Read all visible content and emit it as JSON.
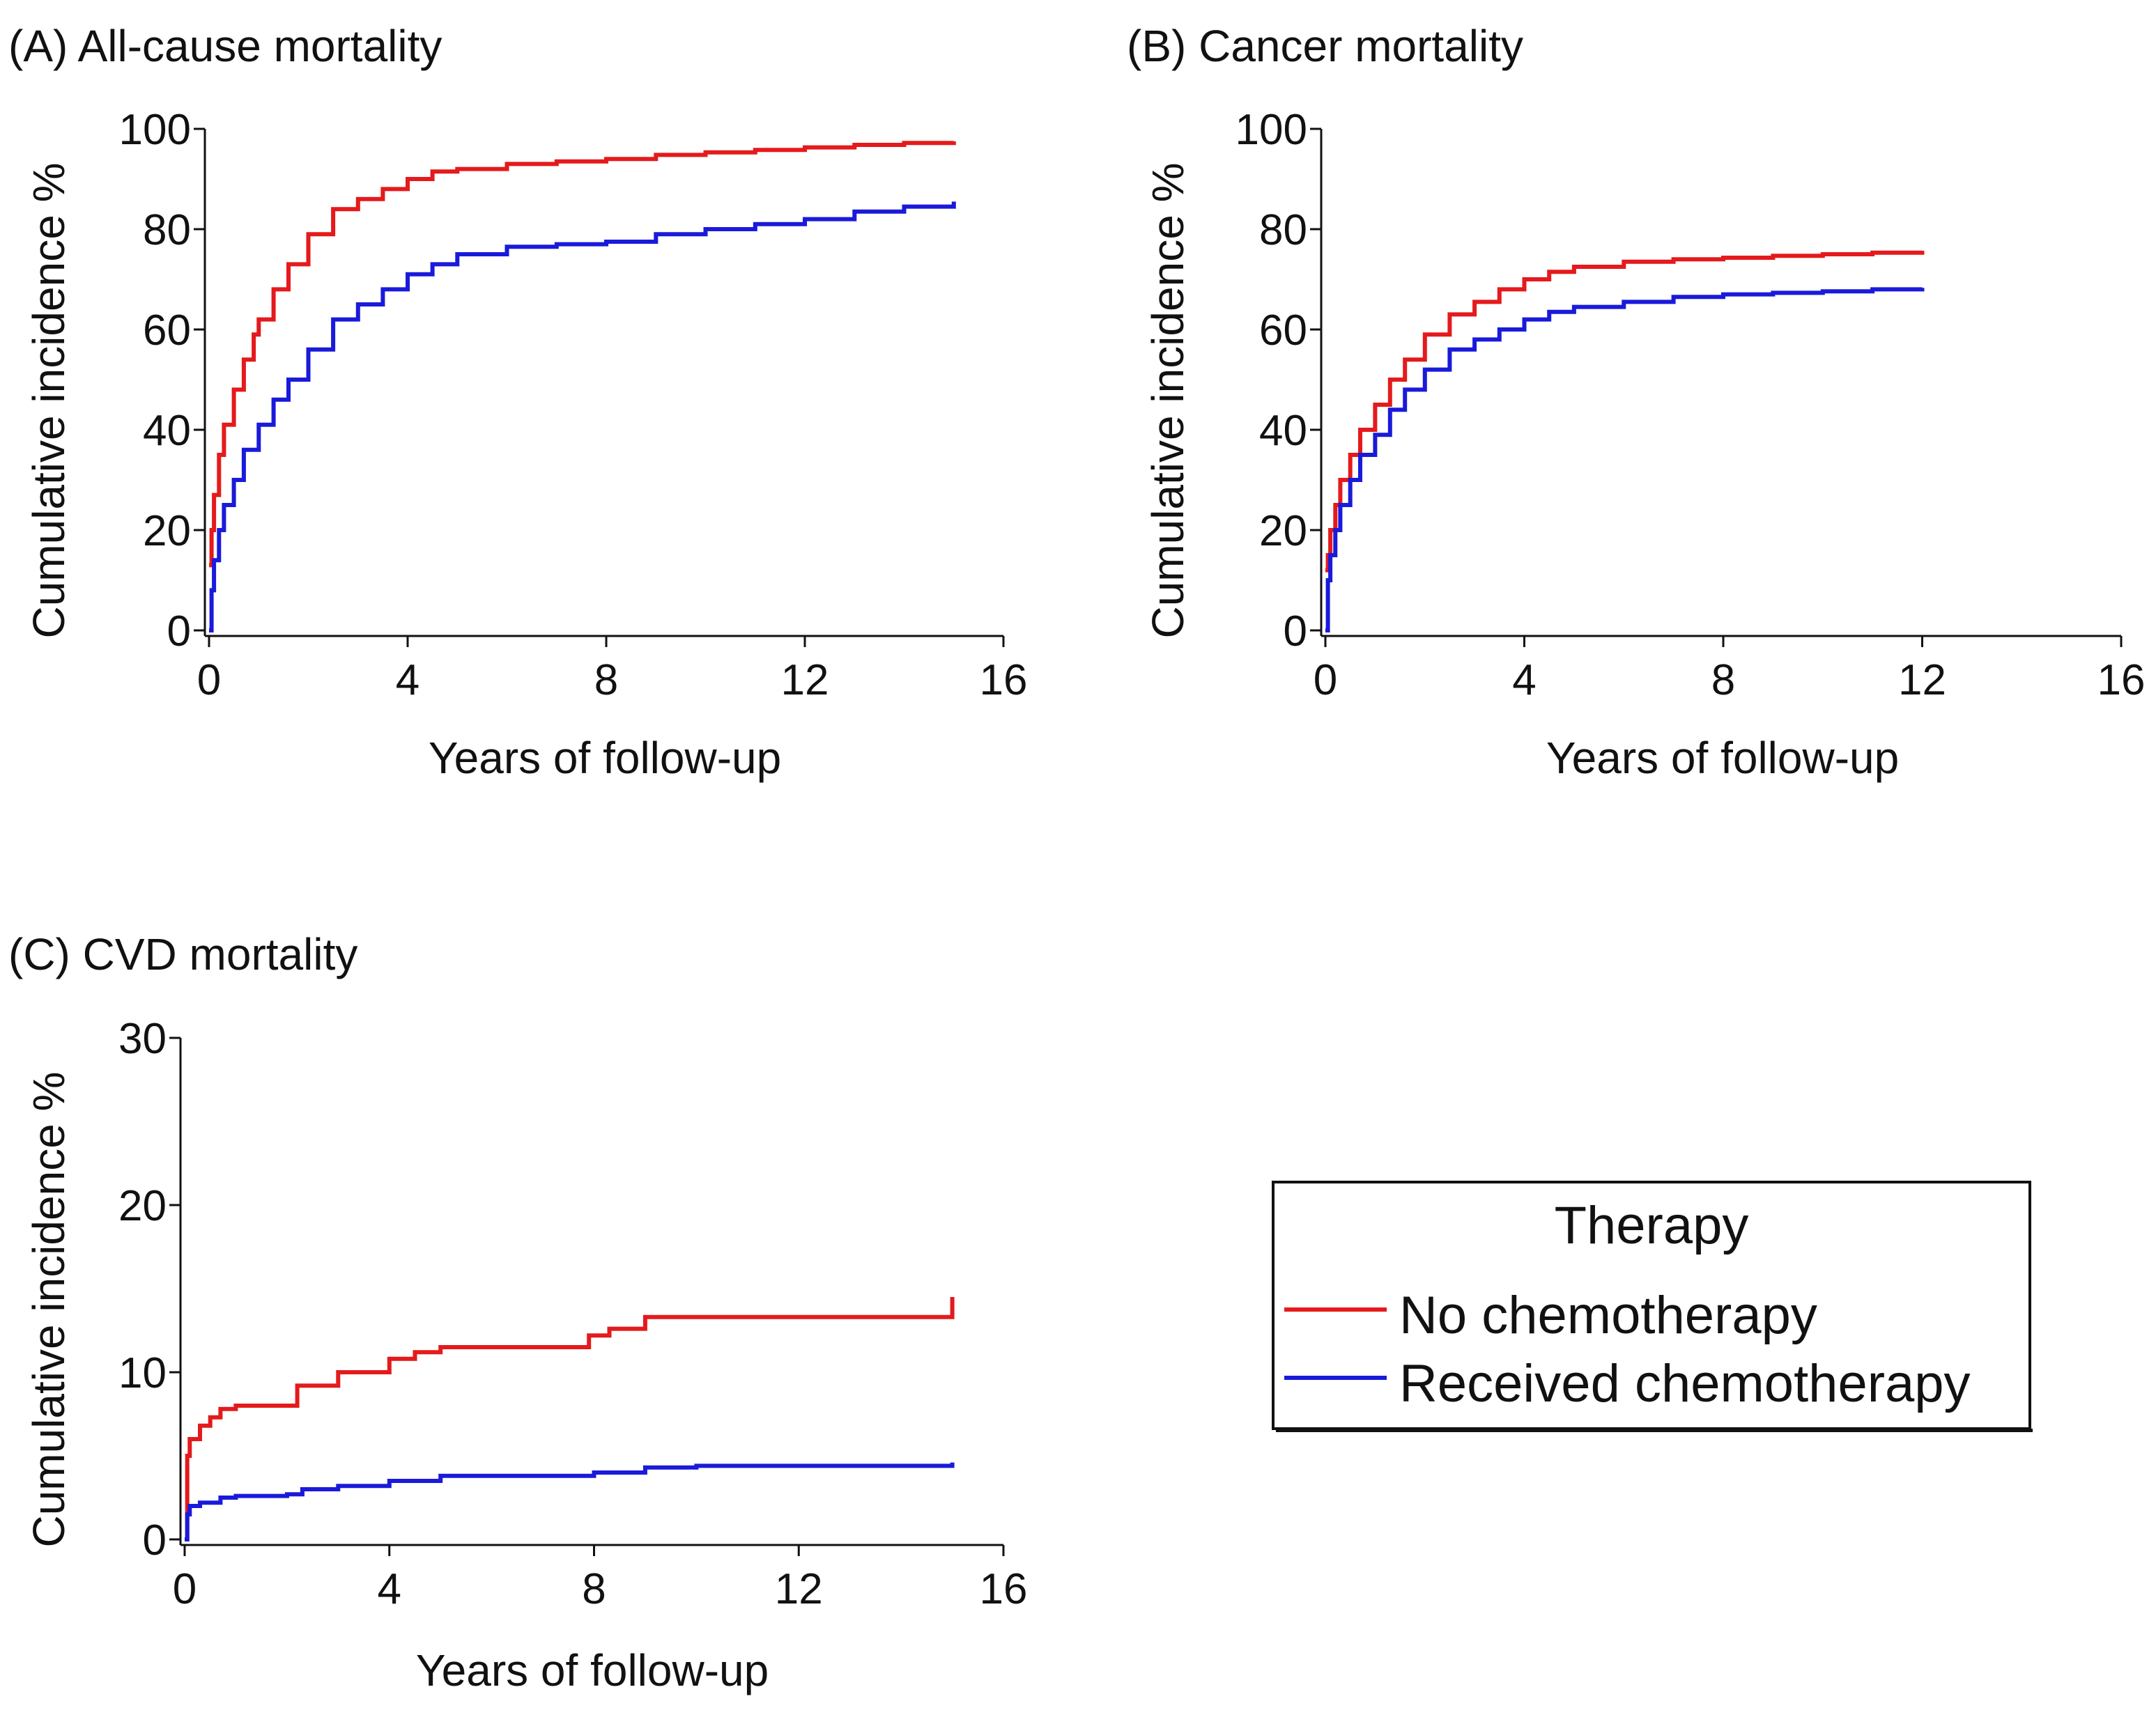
{
  "colors": {
    "no_chemo": "#e41a1c",
    "chemo": "#1a1adb",
    "axis": "#111111"
  },
  "legend": {
    "title": "Therapy",
    "items": [
      {
        "label": "No chemotherapy",
        "series": "no_chemo"
      },
      {
        "label": "Received chemotherapy",
        "series": "chemo"
      }
    ]
  },
  "chart_data": [
    {
      "type": "line",
      "id": "A",
      "title": "(A) All-cause mortality",
      "xlabel": "Years of follow-up",
      "ylabel": "Cumulative incidence %",
      "xlim": [
        0,
        16
      ],
      "ylim": [
        0,
        100
      ],
      "xticks": [
        0,
        4,
        8,
        12,
        16
      ],
      "yticks": [
        0,
        20,
        40,
        60,
        80,
        100
      ],
      "series": [
        {
          "key": "no_chemo",
          "name": "No chemotherapy",
          "x": [
            0,
            0.05,
            0.1,
            0.2,
            0.3,
            0.5,
            0.7,
            0.9,
            1.0,
            1.3,
            1.6,
            2.0,
            2.5,
            3.0,
            3.5,
            4.0,
            4.5,
            5.0,
            6.0,
            7.0,
            8.0,
            9.0,
            10.0,
            11.0,
            12.0,
            13.0,
            14.0,
            15.0
          ],
          "y": [
            13,
            20,
            27,
            35,
            41,
            48,
            54,
            59,
            62,
            68,
            73,
            79,
            84,
            86,
            88,
            90,
            91.5,
            92,
            93,
            93.5,
            94,
            94.8,
            95.3,
            95.8,
            96.3,
            96.8,
            97.2,
            97.5
          ]
        },
        {
          "key": "chemo",
          "name": "Received chemotherapy",
          "x": [
            0,
            0.05,
            0.1,
            0.2,
            0.3,
            0.5,
            0.7,
            1.0,
            1.3,
            1.6,
            2.0,
            2.5,
            3.0,
            3.5,
            4.0,
            4.5,
            5.0,
            6.0,
            7.0,
            8.0,
            9.0,
            10.0,
            11.0,
            12.0,
            13.0,
            14.0,
            15.0
          ],
          "y": [
            0,
            8,
            14,
            20,
            25,
            30,
            36,
            41,
            46,
            50,
            56,
            62,
            65,
            68,
            71,
            73,
            75,
            76.5,
            77,
            77.5,
            79,
            80,
            81,
            82,
            83.5,
            84.5,
            85.5
          ]
        }
      ]
    },
    {
      "type": "line",
      "id": "B",
      "title": "(B) Cancer mortality",
      "xlabel": "Years of follow-up",
      "ylabel": "Cumulative incidence %",
      "xlim": [
        0,
        16
      ],
      "ylim": [
        0,
        100
      ],
      "xticks": [
        0,
        4,
        8,
        12,
        16
      ],
      "yticks": [
        0,
        20,
        40,
        60,
        80,
        100
      ],
      "series": [
        {
          "key": "no_chemo",
          "name": "No chemotherapy",
          "x": [
            0,
            0.05,
            0.1,
            0.2,
            0.3,
            0.5,
            0.7,
            1.0,
            1.3,
            1.6,
            2.0,
            2.5,
            3.0,
            3.5,
            4.0,
            4.5,
            5.0,
            6.0,
            7.0,
            8.0,
            9.0,
            10.0,
            11.0,
            12.0
          ],
          "y": [
            12,
            15,
            20,
            25,
            30,
            35,
            40,
            45,
            50,
            54,
            59,
            63,
            65.5,
            68,
            70,
            71.5,
            72.5,
            73.5,
            74,
            74.3,
            74.7,
            75,
            75.3,
            75.7
          ]
        },
        {
          "key": "chemo",
          "name": "Received chemotherapy",
          "x": [
            0,
            0.05,
            0.1,
            0.2,
            0.3,
            0.5,
            0.7,
            1.0,
            1.3,
            1.6,
            2.0,
            2.5,
            3.0,
            3.5,
            4.0,
            4.5,
            5.0,
            6.0,
            7.0,
            8.0,
            9.0,
            10.0,
            11.0,
            12.0
          ],
          "y": [
            0,
            10,
            15,
            20,
            25,
            30,
            35,
            39,
            44,
            48,
            52,
            56,
            58,
            60,
            62,
            63.5,
            64.5,
            65.5,
            66.5,
            67,
            67.3,
            67.6,
            68,
            68.3
          ]
        }
      ]
    },
    {
      "type": "line",
      "id": "C",
      "title": "(C) CVD mortality",
      "xlabel": "Years of follow-up",
      "ylabel": "Cumulative incidence %",
      "xlim": [
        0,
        16
      ],
      "ylim": [
        0,
        30
      ],
      "xticks": [
        0,
        4,
        8,
        12,
        16
      ],
      "yticks": [
        0,
        10,
        20,
        30
      ],
      "series": [
        {
          "key": "no_chemo",
          "name": "No chemotherapy",
          "x": [
            0,
            0.05,
            0.1,
            0.3,
            0.5,
            0.7,
            1.0,
            2.0,
            2.2,
            3.0,
            4.0,
            4.5,
            5.0,
            6.0,
            7.0,
            7.9,
            8.3,
            9.0,
            10.0,
            11.0,
            12.0,
            13.0,
            14.0,
            14.9,
            15.0
          ],
          "y": [
            0,
            5,
            6,
            6.8,
            7.3,
            7.8,
            8,
            8,
            9.2,
            10,
            10.8,
            11.2,
            11.5,
            11.5,
            11.5,
            12.2,
            12.6,
            13.3,
            13.3,
            13.3,
            13.3,
            13.3,
            13.3,
            13.3,
            14.5
          ]
        },
        {
          "key": "chemo",
          "name": "Received chemotherapy",
          "x": [
            0,
            0.05,
            0.1,
            0.3,
            0.7,
            1.0,
            2.0,
            2.3,
            3.0,
            4.0,
            5.0,
            6.0,
            7.0,
            8.0,
            9.0,
            10.0,
            12.0,
            14.0,
            15.0
          ],
          "y": [
            0,
            1.5,
            2,
            2.2,
            2.5,
            2.6,
            2.7,
            3,
            3.2,
            3.5,
            3.8,
            3.8,
            3.8,
            4,
            4.3,
            4.4,
            4.4,
            4.4,
            4.6
          ]
        }
      ]
    }
  ]
}
